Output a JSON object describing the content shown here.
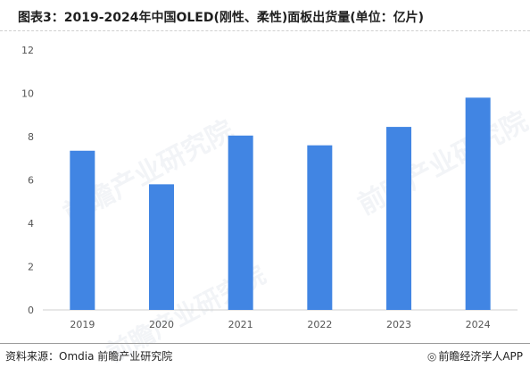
{
  "header": {
    "title": "图表3：2019-2024年中国OLED(刚性、柔性)面板出货量(单位：亿片)"
  },
  "footer": {
    "source": "资料来源：Omdia 前瞻产业研究院",
    "brand": "前瞻经济学人APP",
    "brand_icon": "qianzhan-logo-icon"
  },
  "watermark": {
    "text": "前瞻产业研究院"
  },
  "chart_data": {
    "type": "bar",
    "categories": [
      "2019",
      "2020",
      "2021",
      "2022",
      "2023",
      "2024"
    ],
    "values": [
      7.35,
      5.8,
      8.05,
      7.6,
      8.45,
      9.8
    ],
    "title": "图表3：2019-2024年中国OLED(刚性、柔性)面板出货量(单位：亿片)",
    "xlabel": "",
    "ylabel": "",
    "ylim": [
      0,
      12
    ],
    "yticks": [
      0,
      2,
      4,
      6,
      8,
      10,
      12
    ],
    "grid": false,
    "legend": "none",
    "bar_color": "#4185e3"
  }
}
